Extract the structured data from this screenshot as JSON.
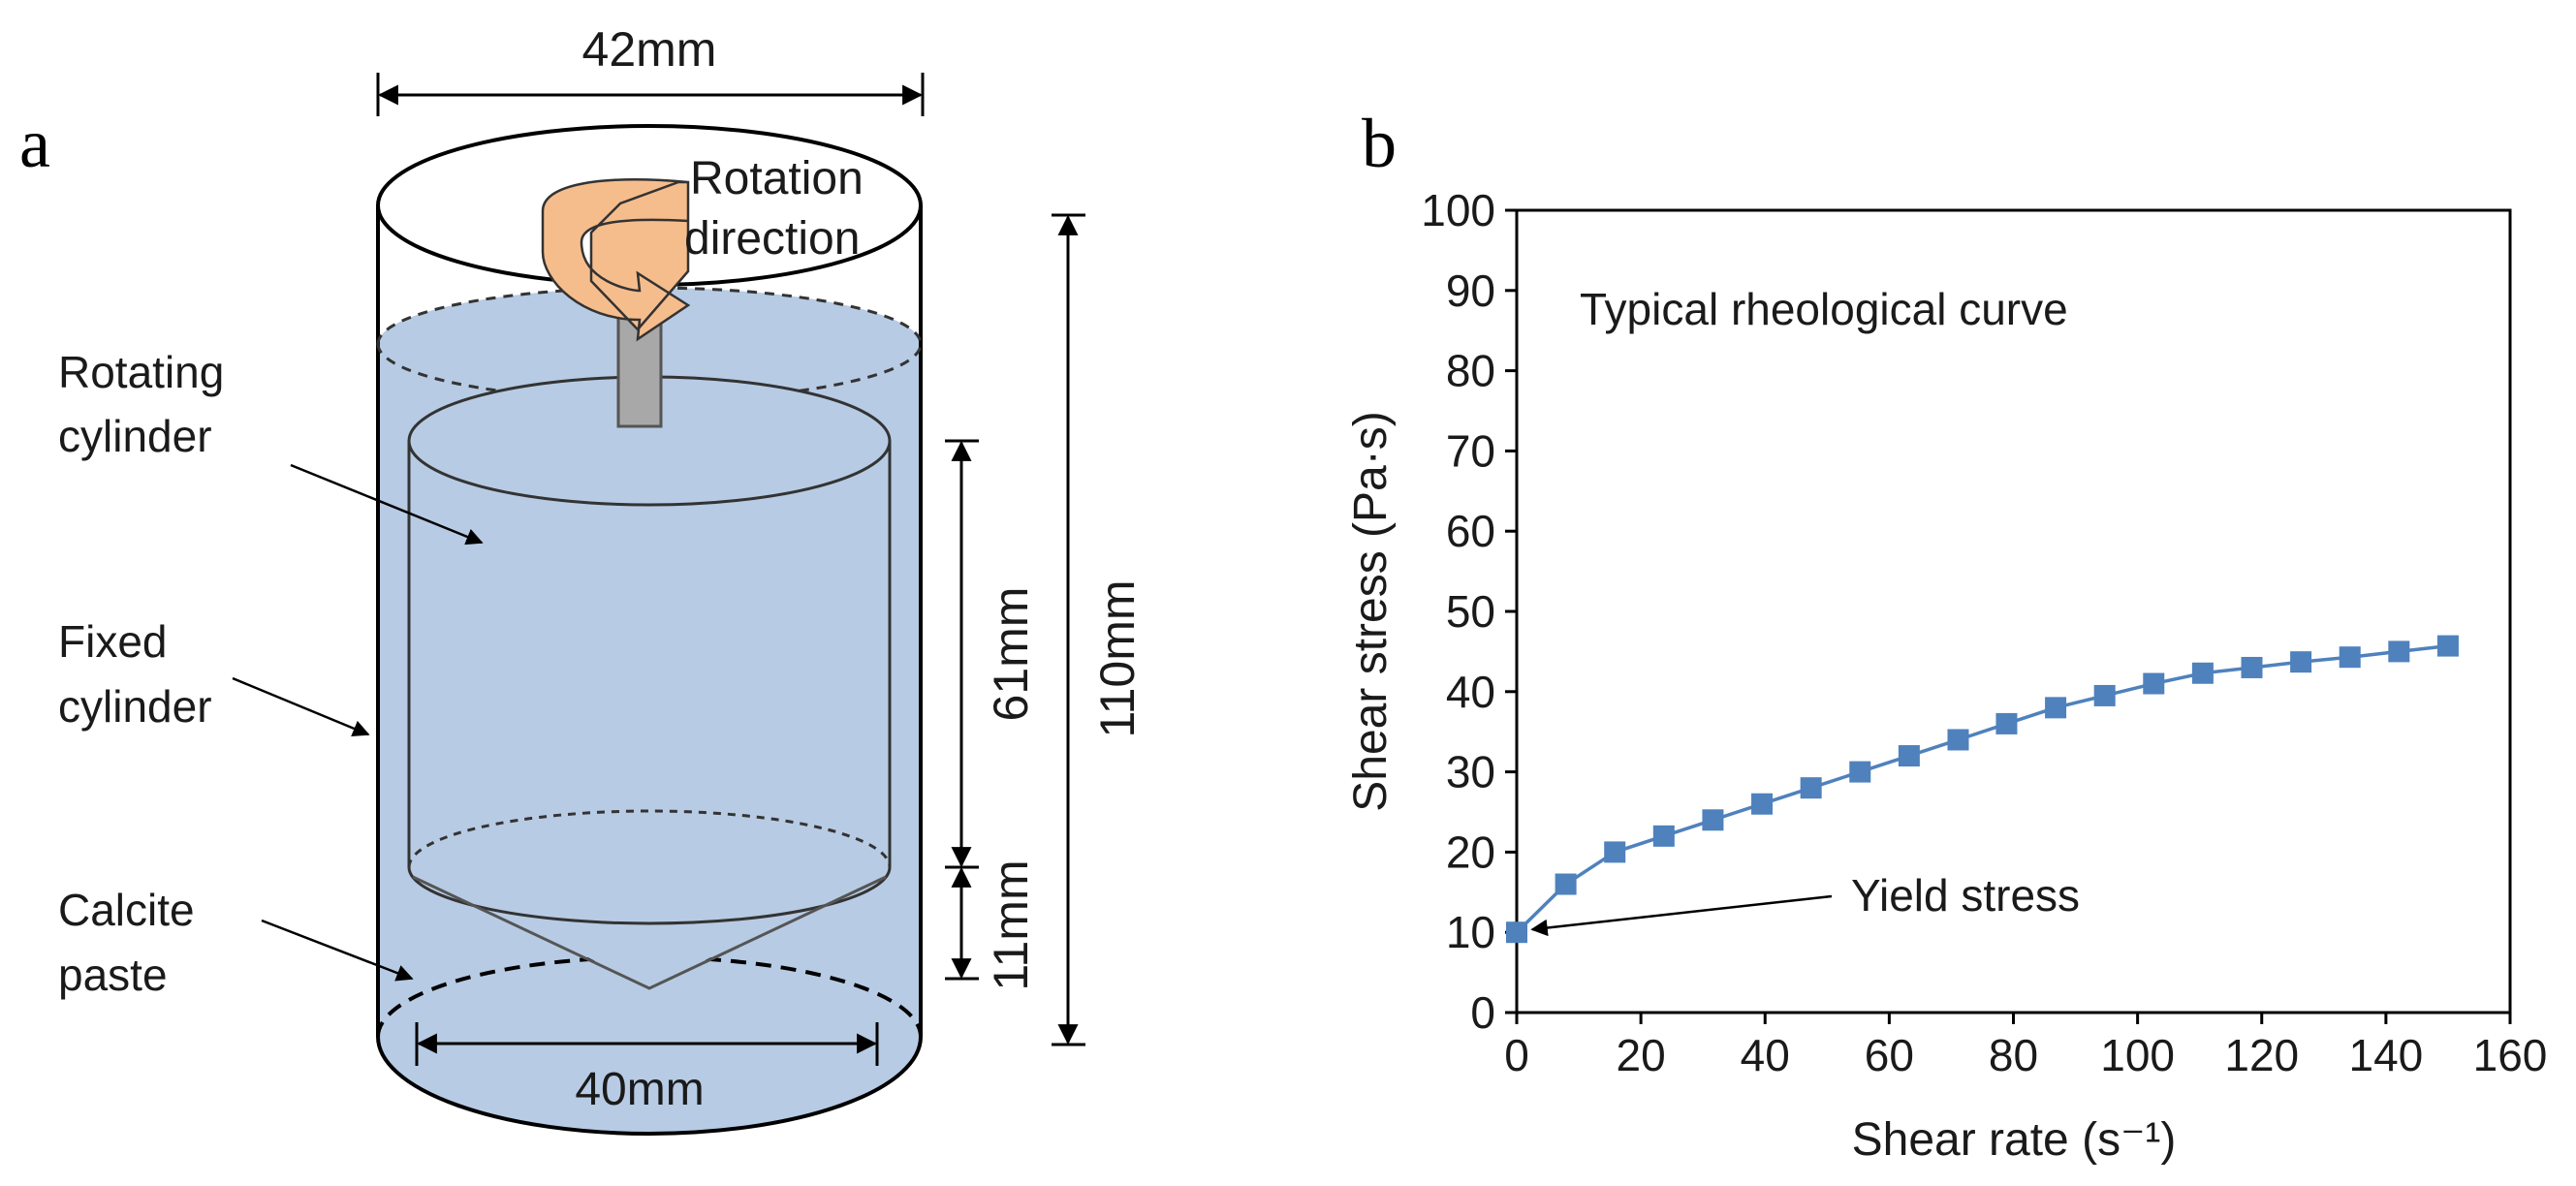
{
  "panel_a": {
    "letter": "a",
    "dim_top": "42mm",
    "dim_bottom": "40mm",
    "dim_right_tall": "110mm",
    "dim_cylinder": "61mm",
    "dim_cone": "11mm",
    "rotation_label_1": "Rotation",
    "rotation_label_2": "direction",
    "label_rotating_1": "Rotating",
    "label_rotating_2": "cylinder",
    "label_fixed_1": "Fixed",
    "label_fixed_2": "cylinder",
    "label_paste_1": "Calcite",
    "label_paste_2": "paste",
    "colors": {
      "paste": "#b7cbe4",
      "arrow": "#f6bd8c",
      "shaft": "#a8a8a8"
    }
  },
  "panel_b": {
    "letter": "b"
  },
  "chart_data": {
    "type": "line",
    "title": "Typical rheological curve",
    "xlabel": "Shear rate (s⁻¹)",
    "ylabel": "Shear stress (Pa·s)",
    "xlim": [
      0,
      160
    ],
    "ylim": [
      0,
      100
    ],
    "xticks": [
      "0",
      "20",
      "40",
      "60",
      "80",
      "100",
      "120",
      "140",
      "160"
    ],
    "yticks": [
      "0",
      "10",
      "20",
      "30",
      "40",
      "50",
      "60",
      "70",
      "80",
      "90",
      "100"
    ],
    "grid": false,
    "legend": "none",
    "marker": "square",
    "color": "#4f81bd",
    "annotation": {
      "text": "Yield stress",
      "x": 0,
      "y": 10
    },
    "series": [
      {
        "x": [
          0,
          7.9,
          15.8,
          23.7,
          31.6,
          39.5,
          47.4,
          55.3,
          63.2,
          71.1,
          78.9,
          86.8,
          94.7,
          102.6,
          110.5,
          118.4,
          126.3,
          134.2,
          142.1,
          150
        ],
        "y": [
          10,
          16,
          20,
          22,
          24,
          26,
          28,
          30,
          32,
          34,
          36,
          38,
          39.5,
          41,
          42.3,
          43,
          43.7,
          44.3,
          45,
          45.7
        ]
      }
    ]
  }
}
